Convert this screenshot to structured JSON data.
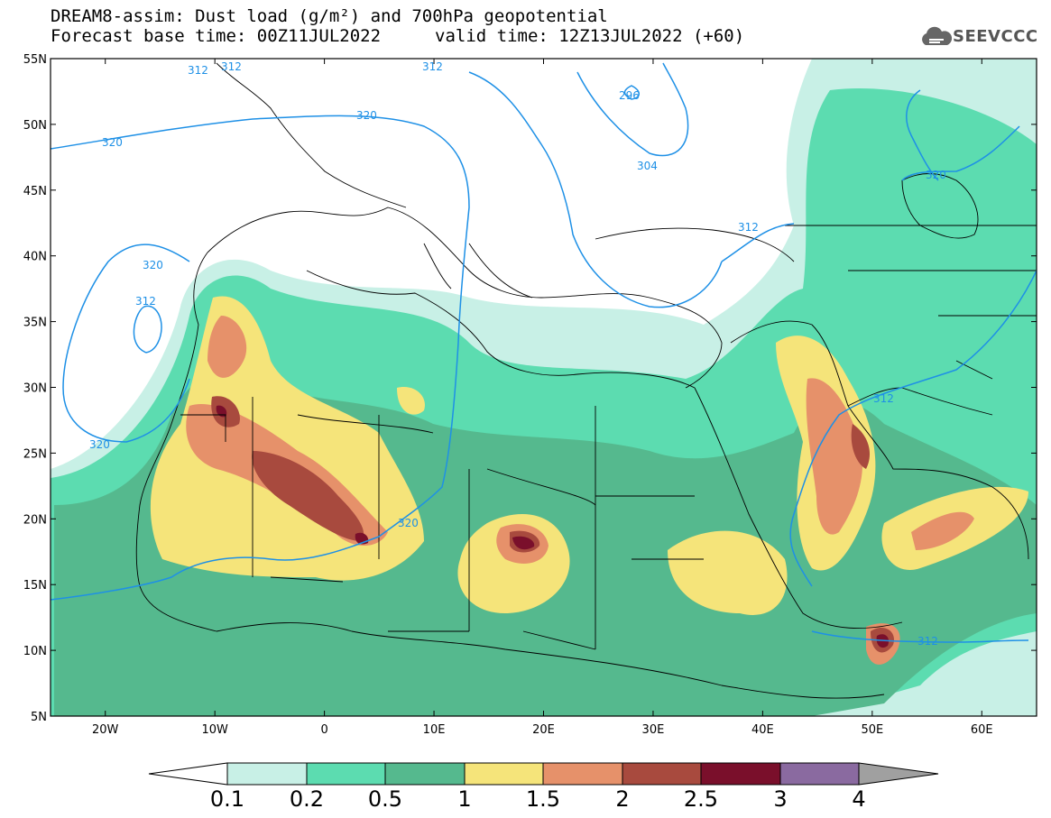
{
  "header": {
    "line1": "DREAM8-assim: Dust load (g/m²) and 700hPa geopotential",
    "line2": "Forecast base time: 00Z11JUL2022",
    "line3": "valid time: 12Z13JUL2022 (+60)"
  },
  "logo": {
    "text": "SEEVCCC",
    "icon": "cloud-logo-icon"
  },
  "map_data": {
    "lon_range": [
      -25,
      65
    ],
    "lat_range": [
      5,
      55
    ],
    "lat_ticks": [
      "55N",
      "50N",
      "45N",
      "40N",
      "35N",
      "30N",
      "25N",
      "20N",
      "15N",
      "10N",
      "5N"
    ],
    "lon_ticks": [
      "20W",
      "10W",
      "0",
      "10E",
      "20E",
      "30E",
      "40E",
      "50E",
      "60E"
    ],
    "contour_labels": [
      "312",
      "312",
      "312",
      "296",
      "320",
      "320",
      "304",
      "312",
      "320",
      "320",
      "312",
      "320",
      "312",
      "320",
      "312"
    ],
    "colors": {
      "c01": "#c8f0e6",
      "c02": "#5cdcb0",
      "c05": "#55b98e",
      "c1": "#f5e47a",
      "c15": "#e6916a",
      "c2": "#a84a3e",
      "c25": "#7a0f2b",
      "c3": "#8a6aa0",
      "c4": "#a0a0a0",
      "contour": "#1e90e6"
    }
  },
  "colorbar": {
    "labels": [
      "0.1",
      "0.2",
      "0.5",
      "1",
      "1.5",
      "2",
      "2.5",
      "3",
      "4"
    ],
    "colors": [
      "#c8f0e6",
      "#5cdcb0",
      "#55b98e",
      "#f5e47a",
      "#e6916a",
      "#a84a3e",
      "#7a0f2b",
      "#8a6aa0"
    ]
  }
}
